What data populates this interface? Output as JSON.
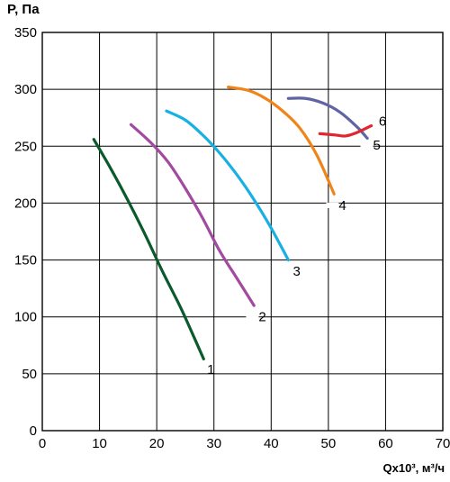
{
  "chart_data": {
    "type": "line",
    "title": "",
    "ylabel": "P, Па",
    "xlabel": "Qx10³, м³/ч",
    "xlim": [
      0,
      70
    ],
    "ylim": [
      0,
      350
    ],
    "xticks": [
      0,
      10,
      20,
      30,
      40,
      50,
      60,
      70
    ],
    "yticks": [
      0,
      50,
      100,
      150,
      200,
      250,
      300,
      350
    ],
    "grid": true,
    "series": [
      {
        "name": "1",
        "color": "#0b5a2c",
        "x": [
          9,
          12,
          15,
          18,
          21,
          24,
          26,
          28.2
        ],
        "y": [
          256,
          230,
          202,
          172,
          140,
          110,
          88,
          63
        ]
      },
      {
        "name": "2",
        "color": "#a24aa0",
        "x": [
          15.5,
          19,
          22,
          25,
          28,
          31,
          34,
          37
        ],
        "y": [
          269,
          253,
          236,
          213,
          187,
          158,
          134,
          110
        ]
      },
      {
        "name": "3",
        "color": "#17b0e3",
        "x": [
          21.7,
          25,
          28,
          31,
          34,
          37,
          40,
          43
        ],
        "y": [
          281,
          273,
          260,
          244,
          225,
          203,
          178,
          150
        ]
      },
      {
        "name": "4",
        "color": "#f08418",
        "x": [
          32.5,
          36,
          39,
          42,
          45,
          48,
          51
        ],
        "y": [
          302,
          299,
          292,
          281,
          266,
          242,
          208
        ]
      },
      {
        "name": "5",
        "color": "#5f65a4",
        "x": [
          43,
          46,
          49,
          52,
          55,
          56.8
        ],
        "y": [
          292,
          292,
          288,
          280,
          267,
          257
        ]
      },
      {
        "name": "6",
        "color": "#e0262e",
        "x": [
          48.5,
          51,
          53,
          55,
          57.5
        ],
        "y": [
          261,
          260,
          259,
          262,
          268
        ]
      }
    ],
    "annotations": [
      {
        "text": "1",
        "x": 28.5,
        "y": 54
      },
      {
        "text": "2",
        "x": 37.5,
        "y": 100
      },
      {
        "text": "3",
        "x": 43.5,
        "y": 140
      },
      {
        "text": "4",
        "x": 51.5,
        "y": 198
      },
      {
        "text": "5",
        "x": 57.5,
        "y": 251
      },
      {
        "text": "6",
        "x": 58.5,
        "y": 272
      }
    ]
  }
}
